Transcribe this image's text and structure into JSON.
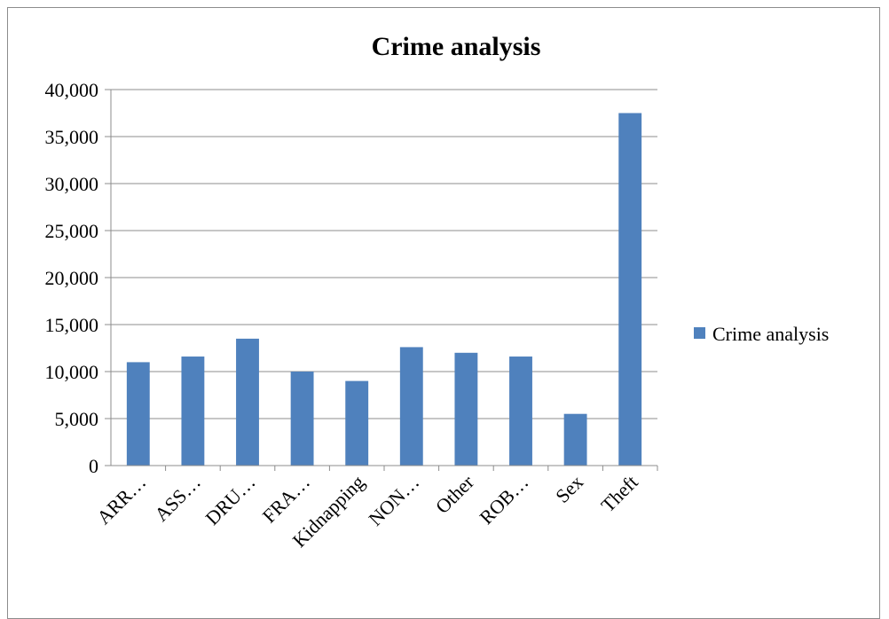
{
  "chart_data": {
    "type": "bar",
    "title": "Crime analysis",
    "categories": [
      "ARR…",
      "ASS…",
      "DRU…",
      "FRA…",
      "Kidnapping",
      "NON…",
      "Other",
      "ROB…",
      "Sex",
      "Theft"
    ],
    "series": [
      {
        "name": "Crime analysis",
        "values": [
          11000,
          11600,
          13500,
          10000,
          9000,
          12600,
          12000,
          11600,
          5500,
          37500
        ]
      }
    ],
    "ylim": [
      0,
      40000
    ],
    "yticks": [
      "0",
      "5,000",
      "10,000",
      "15,000",
      "20,000",
      "25,000",
      "30,000",
      "35,000",
      "40,000"
    ],
    "grid": true,
    "legend_position": "right",
    "colors": {
      "bar": "#4f81bd",
      "grid": "#8c8c8c",
      "axis": "#8c8c8c"
    }
  }
}
